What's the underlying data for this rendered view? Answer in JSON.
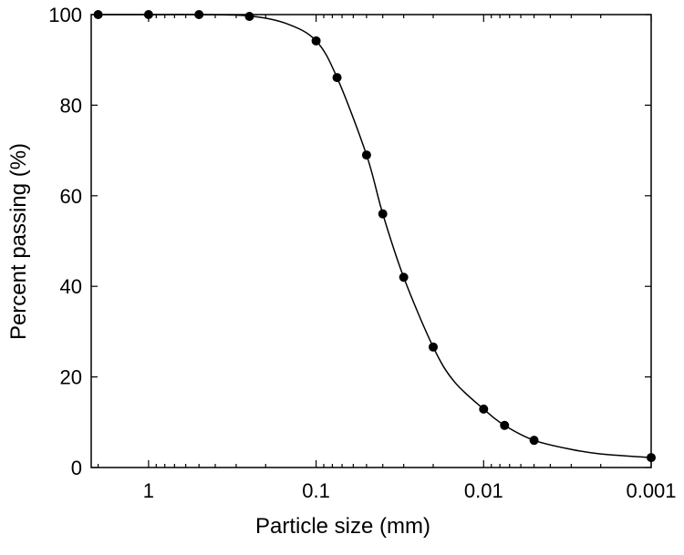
{
  "chart_data": {
    "type": "scatter",
    "xlabel": "Particle size (mm)",
    "ylabel": "Percent passing (%)",
    "xscale": "log",
    "xlim": [
      2.2,
      0.001
    ],
    "xticks": [
      1,
      0.1,
      0.01,
      0.001
    ],
    "xminorticks": [
      2,
      0.9,
      0.8,
      0.7,
      0.6,
      0.5,
      0.4,
      0.3,
      0.2,
      0.09,
      0.08,
      0.07,
      0.06,
      0.05,
      0.04,
      0.03,
      0.02,
      0.009,
      0.008,
      0.007,
      0.006,
      0.005,
      0.004,
      0.003,
      0.002
    ],
    "ylim": [
      0,
      100
    ],
    "yticks": [
      0,
      20,
      40,
      60,
      80,
      100
    ],
    "series": [
      {
        "color": "#000000",
        "marker": "circle",
        "x": [
          2,
          1,
          0.5,
          0.25,
          0.1,
          0.075,
          0.05,
          0.04,
          0.03,
          0.02,
          0.01,
          0.0075,
          0.005,
          0.001
        ],
        "values": [
          100,
          100,
          100,
          99.6,
          94.2,
          86.1,
          69,
          56,
          42,
          26.6,
          12.9,
          9.3,
          6,
          2.2
        ]
      },
      {
        "color": "#000000",
        "line": true,
        "x": [
          2,
          1,
          0.5,
          0.25,
          0.15,
          0.1,
          0.075,
          0.05,
          0.04,
          0.03,
          0.02,
          0.015,
          0.01,
          0.0075,
          0.005,
          0.003,
          0.002,
          0.001
        ],
        "values": [
          100,
          100,
          100,
          99.7,
          98,
          94.2,
          86.1,
          69,
          56,
          42,
          26.6,
          19,
          12.9,
          9.3,
          6,
          4,
          3,
          2.2
        ]
      }
    ]
  }
}
